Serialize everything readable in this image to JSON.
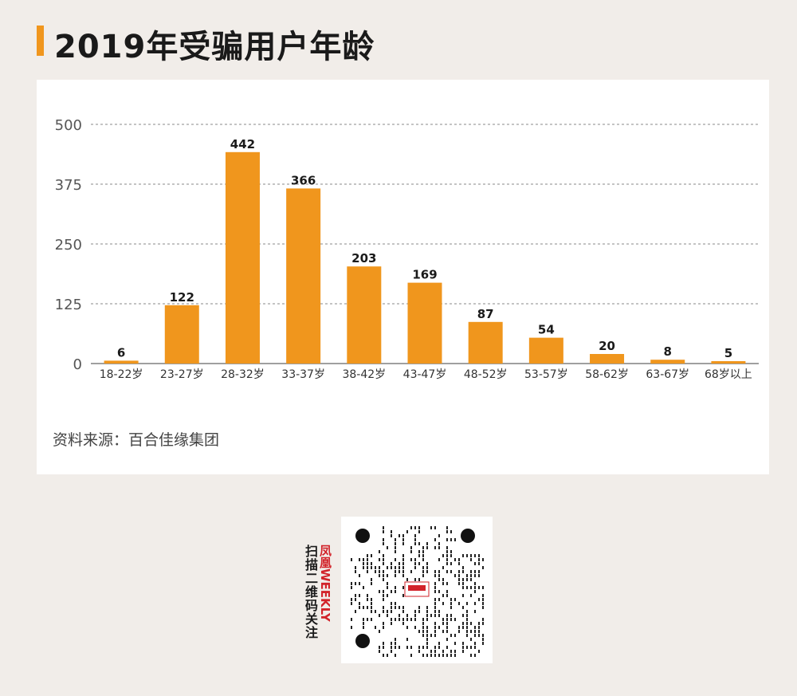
{
  "title": "2019年受骗用户年龄",
  "source": "资料来源：百合佳缘集团",
  "colors": {
    "accent": "#f0961d",
    "bar": "#f0961d",
    "grid": "#888888"
  },
  "chart_data": {
    "type": "bar",
    "title": "2019年受骗用户年龄",
    "categories": [
      "18-22岁",
      "23-27岁",
      "28-32岁",
      "33-37岁",
      "38-42岁",
      "43-47岁",
      "48-52岁",
      "53-57岁",
      "58-62岁",
      "63-67岁",
      "68岁以上"
    ],
    "values": [
      6,
      122,
      442,
      366,
      203,
      169,
      87,
      54,
      20,
      8,
      5
    ],
    "yticks": [
      0,
      125,
      250,
      375,
      500
    ],
    "ylim": [
      0,
      500
    ],
    "grid": "dashed horizontal",
    "xlabel": "",
    "ylabel": ""
  },
  "qr": {
    "brand_cn": "凤凰",
    "brand_en": "WEEKLY",
    "caption": "扫描二维码关注",
    "icon": "qr-code-icon"
  }
}
